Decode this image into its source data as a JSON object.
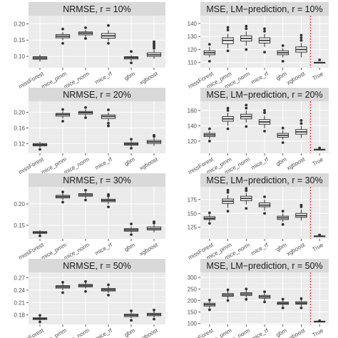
{
  "chart_data": [
    {
      "type": "box",
      "title": "NRMSE, r = 10%",
      "categories": [
        "missForest",
        "mice_pmm",
        "mice_norm",
        "mice_rf",
        "gbm",
        "xgboost"
      ],
      "y_ticks": [
        0.1,
        0.15,
        0.2
      ],
      "y_tick_labels": [
        "0.10",
        "0.15",
        "0.20"
      ],
      "ylim": [
        0.065,
        0.225
      ],
      "boxes": [
        {
          "low": 0.084,
          "q1": 0.091,
          "median": 0.095,
          "q3": 0.099,
          "high": 0.105,
          "outliers": []
        },
        {
          "low": 0.15,
          "q1": 0.157,
          "median": 0.162,
          "q3": 0.167,
          "high": 0.174,
          "outliers": [
            0.14,
            0.184
          ]
        },
        {
          "low": 0.16,
          "q1": 0.166,
          "median": 0.171,
          "q3": 0.175,
          "high": 0.181,
          "outliers": [
            0.155,
            0.188
          ]
        },
        {
          "low": 0.147,
          "q1": 0.156,
          "median": 0.163,
          "q3": 0.17,
          "high": 0.18,
          "outliers": [
            0.14,
            0.195
          ]
        },
        {
          "low": 0.086,
          "q1": 0.092,
          "median": 0.096,
          "q3": 0.099,
          "high": 0.104,
          "outliers": [
            0.08,
            0.115
          ]
        },
        {
          "low": 0.092,
          "q1": 0.1,
          "median": 0.105,
          "q3": 0.111,
          "high": 0.12,
          "outliers": [
            0.125,
            0.13,
            0.135,
            0.14,
            0.145
          ]
        }
      ]
    },
    {
      "type": "box",
      "title": "MSE, LM−prediction, r = 10%",
      "categories": [
        "missForest",
        "mice_pmm",
        "mice_norm",
        "mice_rf",
        "gbm",
        "xgboost",
        "True"
      ],
      "y_ticks": [
        110,
        120,
        130,
        140
      ],
      "y_tick_labels": [
        "110",
        "120",
        "130",
        "140"
      ],
      "ylim": [
        106,
        146
      ],
      "true_line": true,
      "boxes": [
        {
          "low": 114,
          "q1": 116,
          "median": 117.5,
          "q3": 119,
          "high": 122,
          "outliers": [
            111,
            124
          ]
        },
        {
          "low": 121,
          "q1": 124.5,
          "median": 127,
          "q3": 129,
          "high": 132,
          "outliers": [
            119,
            135,
            137
          ]
        },
        {
          "low": 123,
          "q1": 126.5,
          "median": 128.5,
          "q3": 130.5,
          "high": 134,
          "outliers": [
            120,
            136,
            138
          ]
        },
        {
          "low": 122,
          "q1": 125,
          "median": 127,
          "q3": 129,
          "high": 132,
          "outliers": [
            118,
            134,
            136
          ]
        },
        {
          "low": 114,
          "q1": 116,
          "median": 117.5,
          "q3": 119,
          "high": 121,
          "outliers": [
            111,
            123
          ]
        },
        {
          "low": 114,
          "q1": 118,
          "median": 120,
          "q3": 122,
          "high": 125,
          "outliers": [
            127,
            129,
            131
          ]
        },
        {
          "low": 110,
          "q1": 110,
          "median": 110,
          "q3": 110,
          "high": 110,
          "outliers": [
            112
          ]
        }
      ]
    },
    {
      "type": "box",
      "title": "NRMSE, r = 20%",
      "categories": [
        "missForest",
        "mice_pmm",
        "mice_norm",
        "mice_rf",
        "gbm",
        "xgboost"
      ],
      "y_ticks": [
        0.12,
        0.16,
        0.2
      ],
      "y_tick_labels": [
        "0.12",
        "0.16",
        "0.20"
      ],
      "ylim": [
        0.095,
        0.228
      ],
      "boxes": [
        {
          "low": 0.11,
          "q1": 0.114,
          "median": 0.117,
          "q3": 0.12,
          "high": 0.124,
          "outliers": [
            0.105
          ]
        },
        {
          "low": 0.184,
          "q1": 0.19,
          "median": 0.194,
          "q3": 0.197,
          "high": 0.202,
          "outliers": [
            0.177,
            0.207
          ]
        },
        {
          "low": 0.19,
          "q1": 0.195,
          "median": 0.199,
          "q3": 0.202,
          "high": 0.207,
          "outliers": [
            0.186,
            0.212
          ]
        },
        {
          "low": 0.177,
          "q1": 0.184,
          "median": 0.189,
          "q3": 0.193,
          "high": 0.199,
          "outliers": [
            0.165,
            0.172,
            0.206
          ]
        },
        {
          "low": 0.112,
          "q1": 0.116,
          "median": 0.119,
          "q3": 0.122,
          "high": 0.126,
          "outliers": [
            0.108,
            0.131
          ]
        },
        {
          "low": 0.114,
          "q1": 0.12,
          "median": 0.124,
          "q3": 0.128,
          "high": 0.134,
          "outliers": [
            0.138,
            0.141
          ]
        }
      ]
    },
    {
      "type": "box",
      "title": "MSE, LM−prediction, r = 20%",
      "categories": [
        "missForest",
        "mice_pmm",
        "mice_norm",
        "mice_rf",
        "gbm",
        "xgboost",
        "True"
      ],
      "y_ticks": [
        120,
        140,
        160
      ],
      "y_tick_labels": [
        "120",
        "140",
        "160"
      ],
      "ylim": [
        104,
        172
      ],
      "true_line": true,
      "boxes": [
        {
          "low": 123,
          "q1": 126,
          "median": 128,
          "q3": 130,
          "high": 133,
          "outliers": [
            120,
            136
          ]
        },
        {
          "low": 140,
          "q1": 146,
          "median": 149,
          "q3": 152,
          "high": 157,
          "outliers": [
            136,
            160,
            163
          ]
        },
        {
          "low": 144,
          "q1": 149,
          "median": 152,
          "q3": 155,
          "high": 160,
          "outliers": [
            139,
            163,
            167
          ]
        },
        {
          "low": 137,
          "q1": 142,
          "median": 145,
          "q3": 148,
          "high": 153,
          "outliers": [
            133,
            157,
            160
          ]
        },
        {
          "low": 122,
          "q1": 125,
          "median": 127.5,
          "q3": 130,
          "high": 134,
          "outliers": [
            118,
            137
          ]
        },
        {
          "low": 124,
          "q1": 129,
          "median": 132,
          "q3": 135,
          "high": 140,
          "outliers": [
            143,
            147
          ]
        },
        {
          "low": 109,
          "q1": 109,
          "median": 109,
          "q3": 109,
          "high": 109,
          "outliers": [
            111
          ]
        }
      ]
    },
    {
      "type": "box",
      "title": "NRMSE, r = 30%",
      "categories": [
        "missForest",
        "mice_pmm",
        "mice_norm",
        "mice_rf",
        "gbm",
        "xgboost"
      ],
      "y_ticks": [
        0.15,
        0.2
      ],
      "y_tick_labels": [
        "0.15",
        "0.20"
      ],
      "ylim": [
        0.118,
        0.24
      ],
      "boxes": [
        {
          "low": 0.128,
          "q1": 0.131,
          "median": 0.133,
          "q3": 0.135,
          "high": 0.138,
          "outliers": [
            0.125
          ]
        },
        {
          "low": 0.209,
          "q1": 0.214,
          "median": 0.217,
          "q3": 0.22,
          "high": 0.225,
          "outliers": [
            0.204,
            0.228
          ]
        },
        {
          "low": 0.213,
          "q1": 0.218,
          "median": 0.221,
          "q3": 0.224,
          "high": 0.228,
          "outliers": [
            0.209,
            0.232
          ]
        },
        {
          "low": 0.199,
          "q1": 0.205,
          "median": 0.208,
          "q3": 0.211,
          "high": 0.216,
          "outliers": [
            0.193,
            0.219,
            0.222
          ]
        },
        {
          "low": 0.132,
          "q1": 0.136,
          "median": 0.139,
          "q3": 0.142,
          "high": 0.147,
          "outliers": [
            0.128,
            0.153
          ]
        },
        {
          "low": 0.133,
          "q1": 0.139,
          "median": 0.142,
          "q3": 0.146,
          "high": 0.151,
          "outliers": [
            0.155,
            0.158
          ]
        }
      ]
    },
    {
      "type": "box",
      "title": "MSE, LM−prediction, r = 30%",
      "categories": [
        "missForest",
        "mice_pmm",
        "mice_norm",
        "mice_rf",
        "gbm",
        "xgboost",
        "True"
      ],
      "y_ticks": [
        125,
        150,
        175
      ],
      "y_tick_labels": [
        "125",
        "150",
        "175"
      ],
      "ylim": [
        104,
        198
      ],
      "true_line": true,
      "boxes": [
        {
          "low": 135,
          "q1": 139,
          "median": 141,
          "q3": 144,
          "high": 148,
          "outliers": [
            132,
            151
          ]
        },
        {
          "low": 160,
          "q1": 168,
          "median": 172,
          "q3": 176,
          "high": 183,
          "outliers": [
            154,
            188,
            192
          ]
        },
        {
          "low": 166,
          "q1": 173,
          "median": 177,
          "q3": 181,
          "high": 187,
          "outliers": [
            159,
            191,
            195
          ]
        },
        {
          "low": 155,
          "q1": 162,
          "median": 165,
          "q3": 169,
          "high": 175,
          "outliers": [
            150,
            180
          ]
        },
        {
          "low": 135,
          "q1": 139,
          "median": 142,
          "q3": 145,
          "high": 150,
          "outliers": [
            130,
            154
          ]
        },
        {
          "low": 137,
          "q1": 143,
          "median": 146,
          "q3": 150,
          "high": 157,
          "outliers": [
            162,
            165
          ]
        },
        {
          "low": 109,
          "q1": 109,
          "median": 109,
          "q3": 109,
          "high": 109,
          "outliers": [
            111
          ]
        }
      ]
    },
    {
      "type": "box",
      "title": "NRMSE, r = 50%",
      "categories": [
        "missForest",
        "mice_pmm",
        "mice_norm",
        "mice_rf",
        "gbm",
        "xgboost"
      ],
      "y_ticks": [
        0.18,
        0.21,
        0.24,
        0.27
      ],
      "y_tick_labels": [
        "0.18",
        "0.21",
        "0.24",
        "0.27"
      ],
      "ylim": [
        0.157,
        0.283
      ],
      "boxes": [
        {
          "low": 0.166,
          "q1": 0.169,
          "median": 0.171,
          "q3": 0.173,
          "high": 0.176,
          "outliers": [
            0.163,
            0.179
          ]
        },
        {
          "low": 0.24,
          "q1": 0.245,
          "median": 0.248,
          "q3": 0.251,
          "high": 0.256,
          "outliers": [
            0.234,
            0.259
          ]
        },
        {
          "low": 0.244,
          "q1": 0.248,
          "median": 0.251,
          "q3": 0.254,
          "high": 0.258,
          "outliers": [
            0.237,
            0.261
          ]
        },
        {
          "low": 0.233,
          "q1": 0.238,
          "median": 0.241,
          "q3": 0.244,
          "high": 0.249,
          "outliers": [
            0.228,
            0.253
          ]
        },
        {
          "low": 0.172,
          "q1": 0.176,
          "median": 0.179,
          "q3": 0.182,
          "high": 0.187,
          "outliers": [
            0.167,
            0.19
          ]
        },
        {
          "low": 0.174,
          "q1": 0.178,
          "median": 0.181,
          "q3": 0.184,
          "high": 0.189,
          "outliers": [
            0.17,
            0.192
          ]
        }
      ]
    },
    {
      "type": "box",
      "title": "MSE, LM−prediction, r = 50%",
      "categories": [
        "missForest",
        "mice_pmm",
        "mice_norm",
        "mice_rf",
        "gbm",
        "xgboost",
        "True"
      ],
      "y_ticks": [
        100,
        150,
        200,
        250,
        300
      ],
      "y_tick_labels": [
        "100",
        "150",
        "200",
        "250",
        "300"
      ],
      "ylim": [
        96,
        322
      ],
      "true_line": true,
      "boxes": [
        {
          "low": 168,
          "q1": 176,
          "median": 182,
          "q3": 188,
          "high": 196,
          "outliers": [
            160,
            202
          ]
        },
        {
          "low": 208,
          "q1": 218,
          "median": 224,
          "q3": 230,
          "high": 240,
          "outliers": [
            200,
            246
          ]
        },
        {
          "low": 212,
          "q1": 222,
          "median": 228,
          "q3": 234,
          "high": 244,
          "outliers": [
            205,
            250
          ]
        },
        {
          "low": 200,
          "q1": 210,
          "median": 216,
          "q3": 222,
          "high": 232,
          "outliers": [
            194,
            238
          ]
        },
        {
          "low": 175,
          "q1": 183,
          "median": 188,
          "q3": 193,
          "high": 200,
          "outliers": [
            168,
            206
          ]
        },
        {
          "low": 175,
          "q1": 184,
          "median": 189,
          "q3": 195,
          "high": 203,
          "outliers": [
            168,
            208
          ]
        },
        {
          "low": 109,
          "q1": 109,
          "median": 109,
          "q3": 109,
          "high": 109,
          "outliers": [
            112
          ]
        }
      ]
    }
  ],
  "colors": {
    "strip": "#d9d9d9",
    "panel": "#ebebeb",
    "grid_major": "#ffffff",
    "grid_minor": "#f5f5f5",
    "box_line": "#333333",
    "box_fill": "#ffffff",
    "true_line": "#ff0000",
    "tick_text": "#4d4d4d"
  }
}
